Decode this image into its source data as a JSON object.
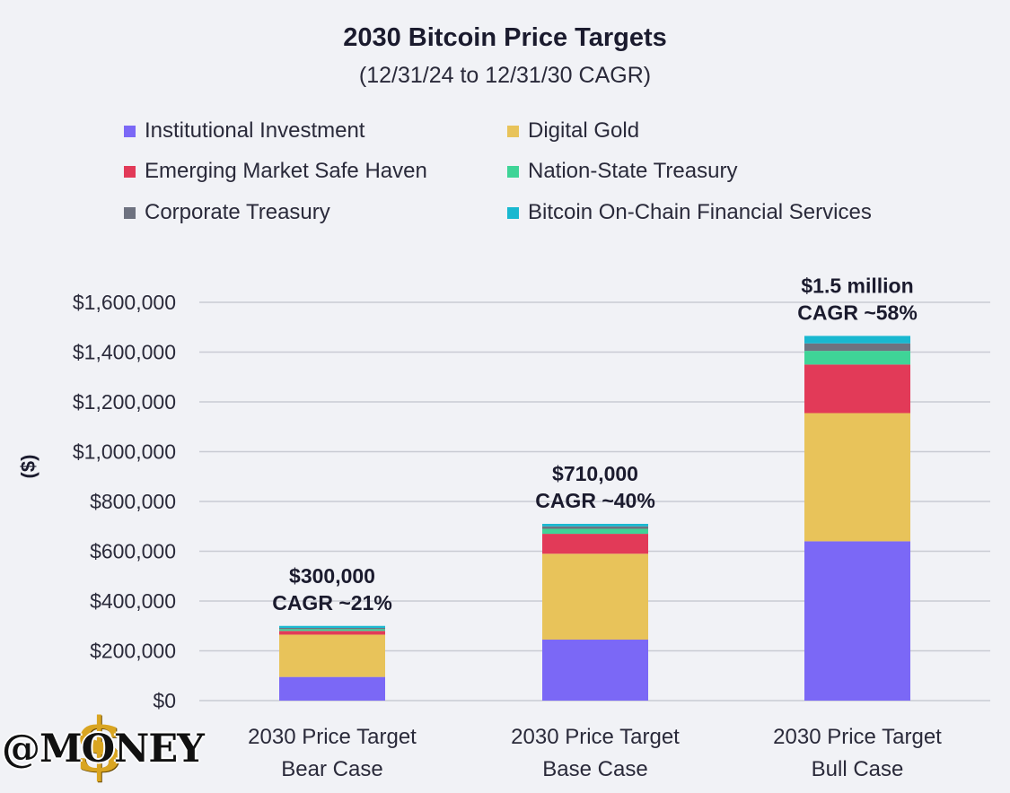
{
  "chart_data": {
    "type": "bar",
    "stacked": true,
    "title": "2030 Bitcoin Price Targets",
    "subtitle": "(12/31/24 to 12/31/30 CAGR)",
    "ylabel": "($)",
    "ylim": [
      0,
      1600000
    ],
    "yticks": [
      0,
      200000,
      400000,
      600000,
      800000,
      1000000,
      1200000,
      1400000,
      1600000
    ],
    "ytick_labels": [
      "$0",
      "$200,000",
      "$400,000",
      "$600,000",
      "$800,000",
      "$1,000,000",
      "$1,200,000",
      "$1,400,000",
      "$1,600,000"
    ],
    "grid": true,
    "legend_position": "top",
    "categories": [
      [
        "2030 Price Target",
        "Bear Case"
      ],
      [
        "2030 Price Target",
        "Base Case"
      ],
      [
        "2030 Price Target",
        "Bull Case"
      ]
    ],
    "series": [
      {
        "name": "Institutional Investment",
        "color": "#7b68f6",
        "values": [
          95000,
          245000,
          640000
        ]
      },
      {
        "name": "Digital Gold",
        "color": "#e8c35a",
        "values": [
          170000,
          345000,
          515000
        ]
      },
      {
        "name": "Emerging Market Safe Haven",
        "color": "#e23a58",
        "values": [
          15000,
          80000,
          195000
        ]
      },
      {
        "name": "Nation-State Treasury",
        "color": "#3fd497",
        "values": [
          7000,
          20000,
          55000
        ]
      },
      {
        "name": "Corporate Treasury",
        "color": "#6e7280",
        "values": [
          5000,
          10000,
          30000
        ]
      },
      {
        "name": "Bitcoin On-Chain Financial Services",
        "color": "#19b8d0",
        "values": [
          8000,
          10000,
          30000
        ]
      }
    ],
    "annotations": [
      {
        "price": "$300,000",
        "cagr": "CAGR ~21%"
      },
      {
        "price": "$710,000",
        "cagr": "CAGR ~40%"
      },
      {
        "price": "$1.5 million",
        "cagr": "CAGR ~58%"
      }
    ]
  },
  "watermark": {
    "text": "@MONEY",
    "symbol": "$"
  }
}
